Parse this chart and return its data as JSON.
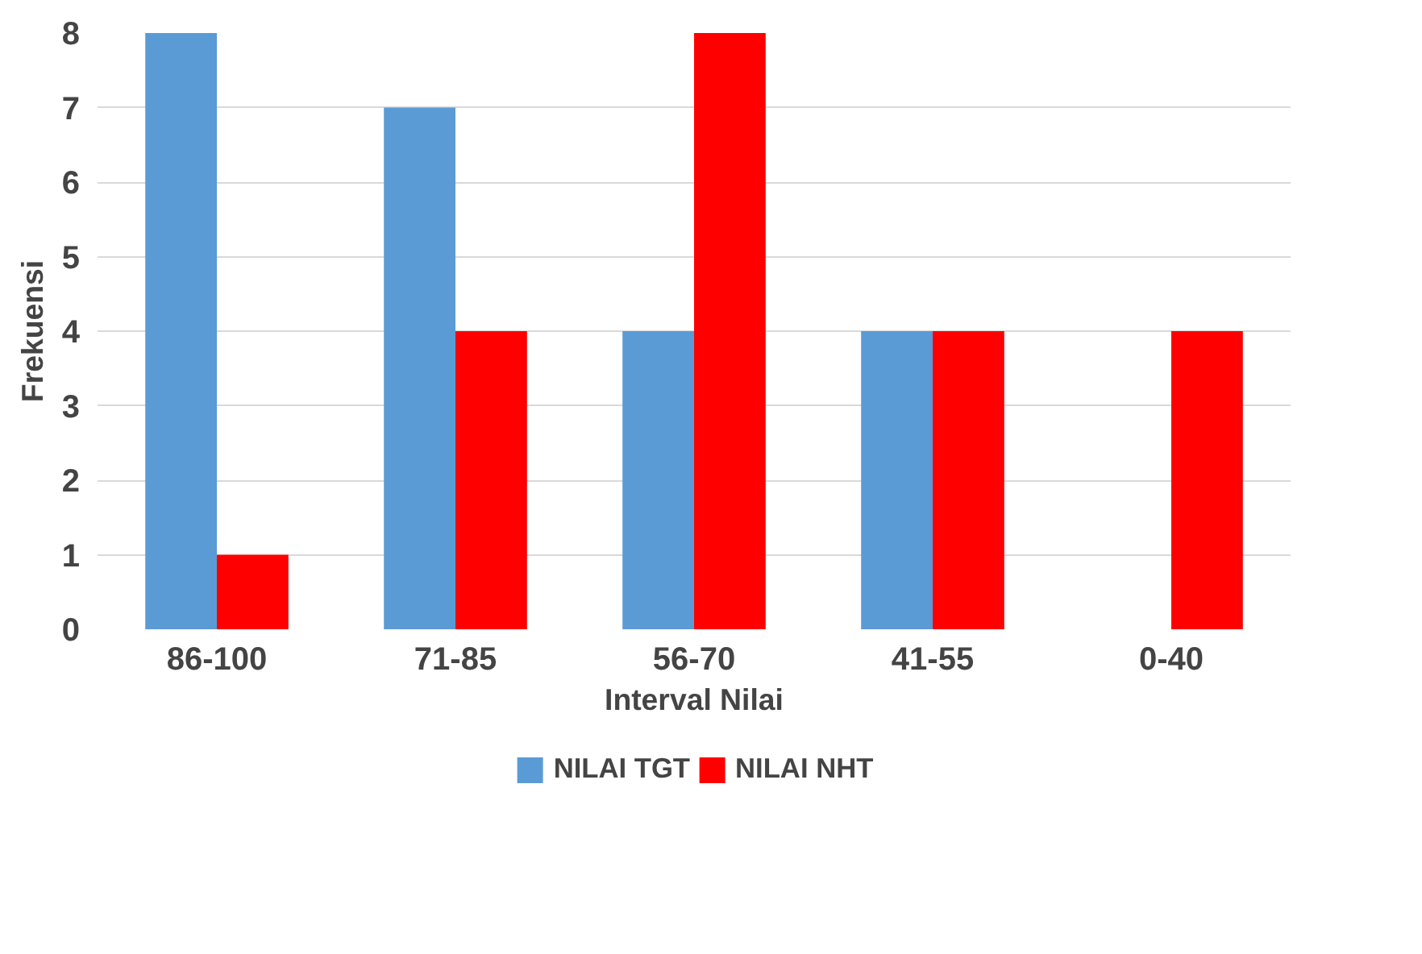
{
  "chart_data": {
    "type": "bar",
    "xlabel": "Interval Nilai",
    "ylabel": "Frekuensi",
    "categories": [
      "86-100",
      "71-85",
      "56-70",
      "41-55",
      "0-40"
    ],
    "series": [
      {
        "name": "NILAI TGT",
        "color": "#5b9bd5",
        "values": [
          8,
          7,
          4,
          4,
          0
        ]
      },
      {
        "name": "NILAI NHT",
        "color": "#ff0000",
        "values": [
          1,
          4,
          8,
          4,
          4
        ]
      }
    ],
    "ylim": [
      0,
      8
    ],
    "yticks": [
      0,
      1,
      2,
      3,
      4,
      5,
      6,
      7,
      8
    ],
    "grid": "y",
    "legend": "bottom"
  }
}
